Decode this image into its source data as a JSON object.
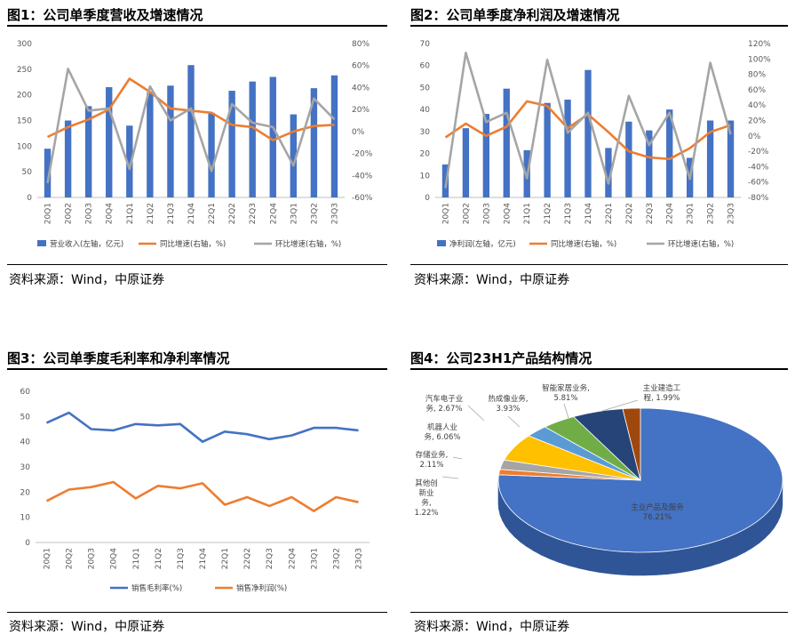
{
  "source_text": "资料来源：Wind，中原证券",
  "chart_data": [
    {
      "id": "fig1",
      "type": "bar+line",
      "title": "图1：公司单季度营收及增速情况",
      "categories": [
        "20Q1",
        "20Q2",
        "20Q3",
        "20Q4",
        "21Q1",
        "21Q2",
        "21Q3",
        "21Q4",
        "22Q1",
        "22Q2",
        "22Q3",
        "22Q4",
        "23Q1",
        "23Q2",
        "23Q3"
      ],
      "left_axis": {
        "min": 0,
        "max": 300,
        "step": 50,
        "ticks": [
          "0",
          "50",
          "100",
          "150",
          "200",
          "250",
          "300"
        ]
      },
      "right_axis": {
        "min": -60,
        "max": 80,
        "step": 20,
        "ticks": [
          "-60%",
          "-40%",
          "-20%",
          "0%",
          "20%",
          "40%",
          "60%",
          "80%"
        ]
      },
      "series": [
        {
          "name": "营业收入(左轴，亿元)",
          "axis": "left",
          "kind": "bar",
          "color": "#4472C4",
          "values": [
            95,
            150,
            178,
            215,
            140,
            205,
            218,
            258,
            165,
            208,
            226,
            235,
            162,
            213,
            238
          ]
        },
        {
          "name": "同比增速(右轴，%)",
          "axis": "right",
          "kind": "line",
          "color": "#ED7D31",
          "values": [
            -5,
            4,
            11,
            20,
            48,
            36,
            21,
            19,
            17,
            6,
            4,
            -8,
            0,
            5,
            6
          ]
        },
        {
          "name": "环比增速(右轴，%)",
          "axis": "right",
          "kind": "line",
          "color": "#A5A5A5",
          "values": [
            -47,
            57,
            19,
            21,
            -34,
            41,
            10,
            21,
            -36,
            25,
            8,
            4,
            -31,
            30,
            11
          ]
        }
      ]
    },
    {
      "id": "fig2",
      "type": "bar+line",
      "title": "图2：公司单季度净利润及增速情况",
      "categories": [
        "20Q1",
        "20Q2",
        "20Q3",
        "20Q4",
        "21Q1",
        "21Q2",
        "21Q3",
        "21Q4",
        "22Q1",
        "22Q2",
        "22Q3",
        "22Q4",
        "23Q1",
        "23Q2",
        "23Q3"
      ],
      "left_axis": {
        "min": 0,
        "max": 70,
        "step": 10,
        "ticks": [
          "0",
          "10",
          "20",
          "30",
          "40",
          "50",
          "60",
          "70"
        ]
      },
      "right_axis": {
        "min": -80,
        "max": 120,
        "step": 20,
        "ticks": [
          "-80%",
          "-60%",
          "-40%",
          "-20%",
          "0%",
          "20%",
          "40%",
          "60%",
          "80%",
          "100%",
          "120%"
        ]
      },
      "series": [
        {
          "name": "净利润(左轴，亿元)",
          "axis": "left",
          "kind": "bar",
          "color": "#4472C4",
          "values": [
            15,
            31.5,
            38,
            49.5,
            21.5,
            43,
            44.5,
            58,
            22.5,
            34.5,
            30.5,
            40,
            18,
            35,
            35
          ]
        },
        {
          "name": "同比增速(右轴，%)",
          "axis": "right",
          "kind": "line",
          "color": "#ED7D31",
          "values": [
            -2,
            16,
            0,
            12,
            45,
            39,
            10,
            28,
            5,
            -20,
            -28,
            -30,
            -16,
            5,
            14
          ]
        },
        {
          "name": "环比增速(右轴，%)",
          "axis": "right",
          "kind": "line",
          "color": "#A5A5A5",
          "values": [
            -68,
            108,
            18,
            30,
            -55,
            99,
            4,
            30,
            -62,
            52,
            -12,
            30,
            -56,
            95,
            2
          ]
        }
      ]
    },
    {
      "id": "fig3",
      "type": "line",
      "title": "图3：公司单季度毛利率和净利率情况",
      "categories": [
        "20Q1",
        "20Q2",
        "20Q3",
        "20Q4",
        "21Q1",
        "21Q2",
        "21Q3",
        "21Q4",
        "22Q1",
        "22Q2",
        "22Q3",
        "22Q4",
        "23Q1",
        "23Q2",
        "23Q3"
      ],
      "left_axis": {
        "min": 0,
        "max": 60,
        "step": 10,
        "ticks": [
          "0",
          "10",
          "20",
          "30",
          "40",
          "50",
          "60"
        ]
      },
      "series": [
        {
          "name": "销售毛利率(%)",
          "kind": "line",
          "color": "#4472C4",
          "values": [
            47.5,
            51.5,
            45,
            44.5,
            47,
            46.5,
            47,
            40,
            44,
            43,
            41,
            42.5,
            45.5,
            45.5,
            44.5
          ]
        },
        {
          "name": "销售净利润(%)",
          "kind": "line",
          "color": "#ED7D31",
          "values": [
            16.5,
            21,
            22,
            24,
            17.5,
            22.5,
            21.5,
            23.5,
            15,
            18,
            14.5,
            18,
            12.5,
            18,
            16
          ]
        }
      ]
    },
    {
      "id": "fig4",
      "type": "pie",
      "title": "图4：公司23H1产品结构情况",
      "slices": [
        {
          "name": "主业产品及服务",
          "value": 76.21,
          "label": "76.21%",
          "color": "#4472C4",
          "side": "#2F5597"
        },
        {
          "name": "其他创新业务",
          "value": 1.22,
          "label": "1.22%",
          "color": "#ED7D31",
          "side": "#B85A1E"
        },
        {
          "name": "存储业务",
          "value": 2.11,
          "label": "2.11%",
          "color": "#A5A5A5",
          "side": "#7A7A7A"
        },
        {
          "name": "机器人业务",
          "value": 6.06,
          "label": "6.06%",
          "color": "#FFC000",
          "side": "#C49300"
        },
        {
          "name": "汽车电子业务",
          "value": 2.67,
          "label": "2.67%",
          "color": "#5B9BD5",
          "side": "#3F78AD"
        },
        {
          "name": "热成像业务",
          "value": 3.93,
          "label": "3.93%",
          "color": "#70AD47",
          "side": "#4F8131"
        },
        {
          "name": "智能家居业务",
          "value": 5.81,
          "label": "5.81%",
          "color": "#264478",
          "side": "#1A2F55"
        },
        {
          "name": "主业建造工程",
          "value": 1.99,
          "label": "1.99%",
          "color": "#9E480E",
          "side": "#6F320A"
        }
      ],
      "labels": [
        {
          "lines": [
            "主业产品及服务",
            "76.21%"
          ]
        },
        {
          "lines": [
            "其他创",
            "新业",
            "务,",
            "1.22%"
          ]
        },
        {
          "lines": [
            "存储业务,",
            "2.11%"
          ]
        },
        {
          "lines": [
            "机器人业",
            "务, 6.06%"
          ]
        },
        {
          "lines": [
            "汽车电子业",
            "务, 2.67%"
          ]
        },
        {
          "lines": [
            "热成像业务,",
            "3.93%"
          ]
        },
        {
          "lines": [
            "智能家居业务,",
            "5.81%"
          ]
        },
        {
          "lines": [
            "主业建造工",
            "程, 1.99%"
          ]
        }
      ]
    }
  ]
}
